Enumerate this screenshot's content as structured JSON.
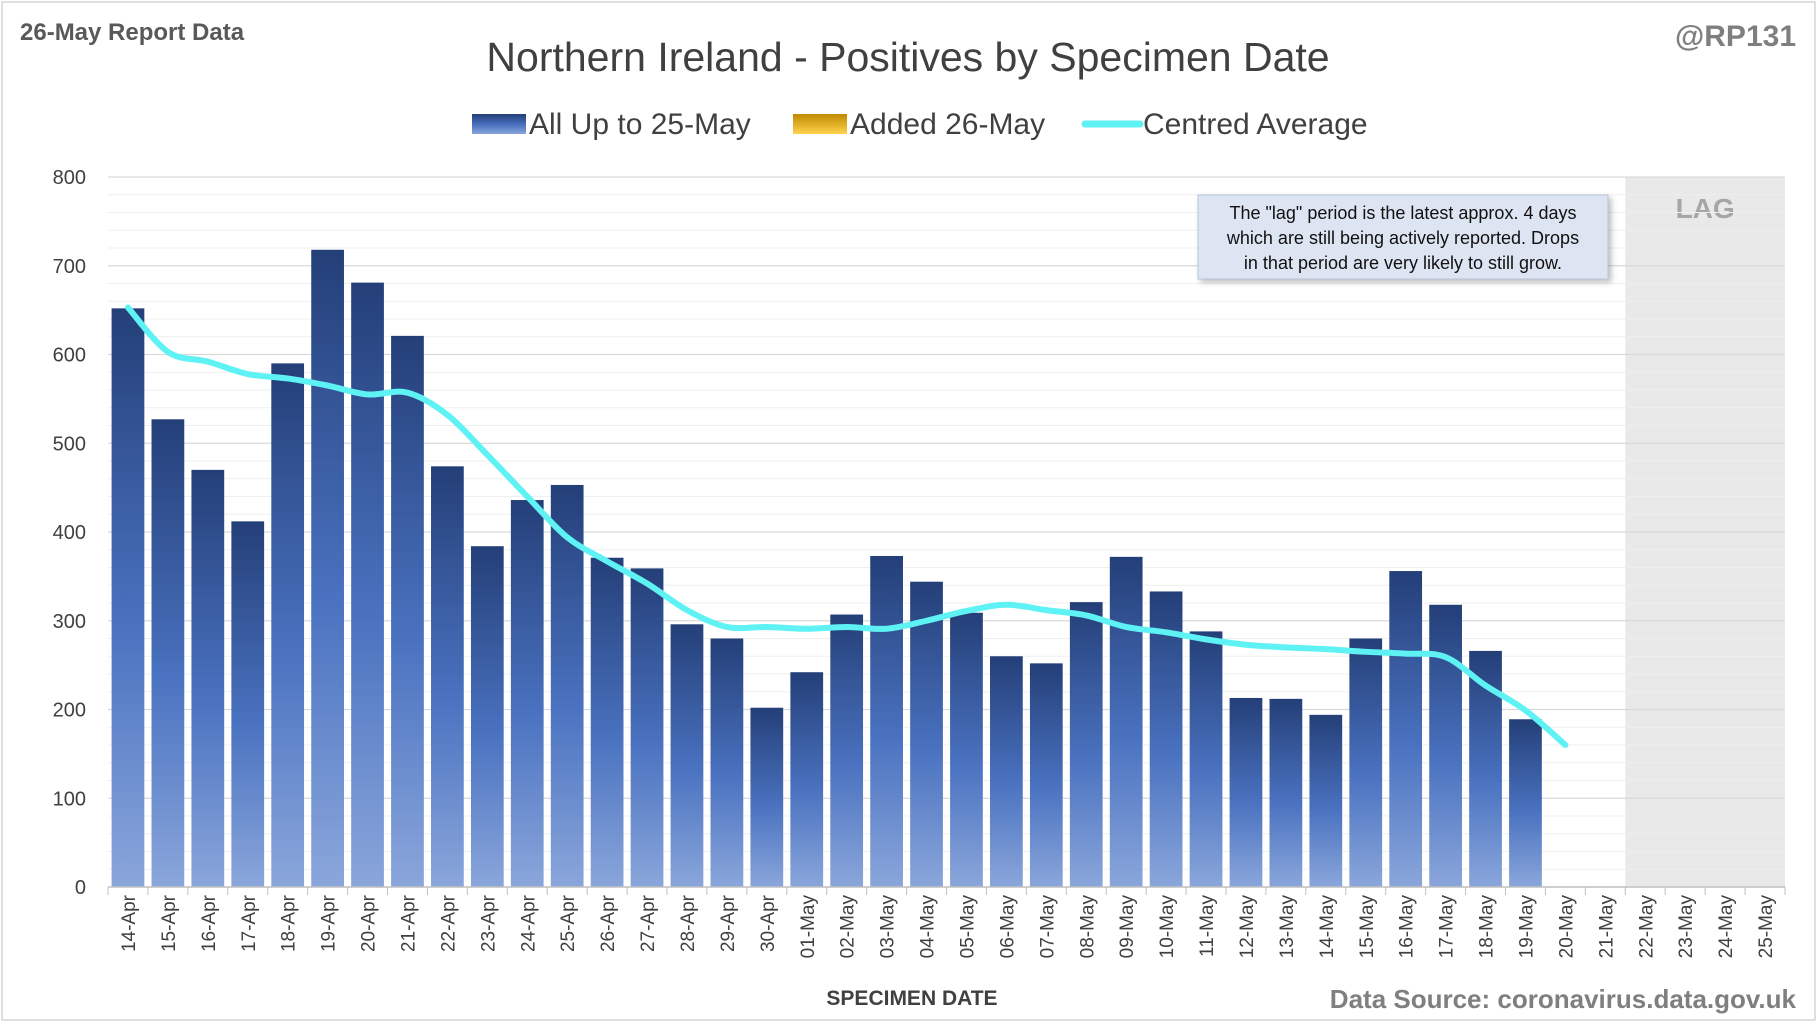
{
  "header": {
    "report_label": "26-May Report Data",
    "handle": "@RP131"
  },
  "footer": {
    "source": "Data Source: coronavirus.data.gov.uk"
  },
  "note": {
    "lines": [
      "The \"lag\" period is the latest approx. 4 days",
      "which are still being actively reported.  Drops",
      "in that period are very likely to still grow."
    ]
  },
  "colors": {
    "bar_top": "#243f78",
    "bar_bottom": "#8aa6db",
    "added_top": "#c08a00",
    "added_bottom": "#ffd24d",
    "average_line": "#5ef2f4",
    "lag_region": "#e9e9e9",
    "grid": "#d9d9d9",
    "note_bg": "#dde4f2"
  },
  "chart_data": {
    "type": "bar",
    "title": "Northern Ireland - Positives by Specimen Date",
    "xlabel": "SPECIMEN DATE",
    "ylabel": "",
    "ylim": [
      0,
      800
    ],
    "yticks": [
      0,
      100,
      200,
      300,
      400,
      500,
      600,
      700,
      800
    ],
    "grid": true,
    "legend_position": "top-center",
    "categories": [
      "14-Apr",
      "15-Apr",
      "16-Apr",
      "17-Apr",
      "18-Apr",
      "19-Apr",
      "20-Apr",
      "21-Apr",
      "22-Apr",
      "23-Apr",
      "24-Apr",
      "25-Apr",
      "26-Apr",
      "27-Apr",
      "28-Apr",
      "29-Apr",
      "30-Apr",
      "01-May",
      "02-May",
      "03-May",
      "04-May",
      "05-May",
      "06-May",
      "07-May",
      "08-May",
      "09-May",
      "10-May",
      "11-May",
      "12-May",
      "13-May",
      "14-May",
      "15-May",
      "16-May",
      "17-May",
      "18-May",
      "19-May",
      "20-May",
      "21-May",
      "22-May",
      "23-May",
      "24-May",
      "25-May"
    ],
    "series": [
      {
        "name": "All Up to 25-May",
        "kind": "bar",
        "values": [
          652,
          527,
          470,
          412,
          590,
          718,
          681,
          621,
          474,
          384,
          436,
          453,
          371,
          359,
          296,
          280,
          202,
          242,
          307,
          373,
          344,
          309,
          260,
          252,
          321,
          372,
          333,
          288,
          213,
          212,
          194,
          280,
          356,
          318,
          266,
          189,
          0,
          0,
          0,
          0,
          0,
          0
        ]
      },
      {
        "name": "Added 26-May",
        "kind": "bar",
        "values": [
          0,
          0,
          0,
          0,
          0,
          0,
          0,
          0,
          0,
          0,
          0,
          0,
          0,
          0,
          0,
          0,
          0,
          0,
          0,
          0,
          0,
          0,
          0,
          0,
          0,
          0,
          0,
          0,
          0,
          0,
          0,
          0,
          0,
          0,
          0,
          0,
          0,
          0,
          0,
          0,
          0,
          0
        ]
      },
      {
        "name": "Centred Average",
        "kind": "line",
        "values": [
          653,
          603,
          592,
          578,
          573,
          565,
          555,
          557,
          532,
          487,
          440,
          394,
          367,
          342,
          312,
          293,
          293,
          291,
          293,
          291,
          300,
          311,
          318,
          312,
          306,
          293,
          287,
          279,
          273,
          270,
          268,
          265,
          263,
          259,
          227,
          199,
          160,
          null,
          null,
          null,
          null,
          null
        ]
      }
    ],
    "lag_region": {
      "label": "LAG",
      "from": "22-May",
      "to": "25-May"
    }
  }
}
